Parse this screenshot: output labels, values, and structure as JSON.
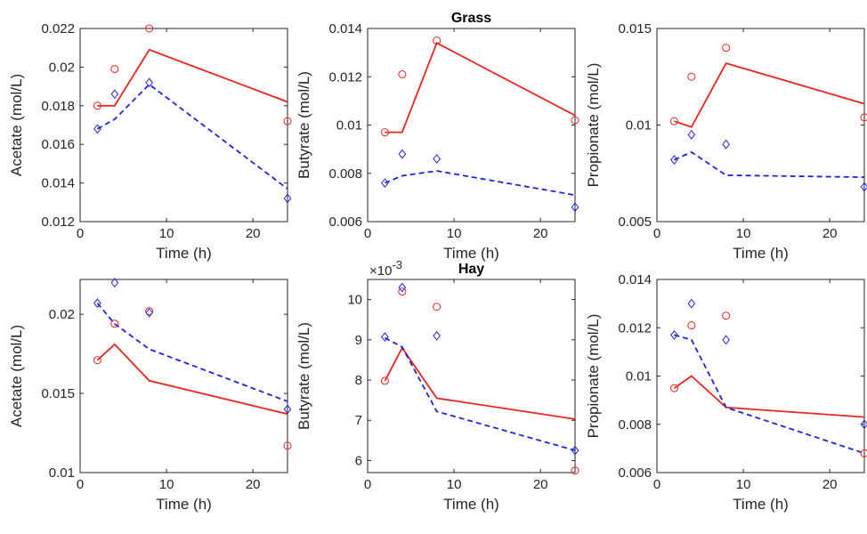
{
  "colors": {
    "red": "#e8261f",
    "blue": "#1f24d8",
    "axis": "#262626"
  },
  "chart_data": [
    {
      "type": "line",
      "title": "",
      "xlabel": "Time (h)",
      "ylabel": "Acetate (mol/L)",
      "xlim": [
        0,
        24
      ],
      "ylim": [
        0.012,
        0.022
      ],
      "xticks": [
        0,
        10,
        20
      ],
      "xtick_labels": [
        "0",
        "10",
        "20"
      ],
      "yticks": [
        0.012,
        0.014,
        0.016,
        0.018,
        0.02,
        0.022
      ],
      "ytick_labels": [
        "0.012",
        "0.014",
        "0.016",
        "0.018",
        "0.02",
        "0.022"
      ],
      "series": [
        {
          "style": "red-solid",
          "marker": "circle",
          "line": [
            [
              2,
              0.018
            ],
            [
              4,
              0.018
            ],
            [
              8,
              0.0209
            ],
            [
              24,
              0.0182
            ]
          ],
          "points": [
            [
              2,
              0.018
            ],
            [
              4,
              0.0199
            ],
            [
              8,
              0.022
            ],
            [
              24,
              0.0172
            ]
          ]
        },
        {
          "style": "blue-dashed",
          "marker": "diamond",
          "line": [
            [
              2,
              0.0168
            ],
            [
              4,
              0.0173
            ],
            [
              8,
              0.0191
            ],
            [
              24,
              0.0137
            ]
          ],
          "points": [
            [
              2,
              0.0168
            ],
            [
              4,
              0.0186
            ],
            [
              8,
              0.0192
            ],
            [
              24,
              0.0132
            ]
          ]
        }
      ]
    },
    {
      "type": "line",
      "title": "Grass",
      "xlabel": "Time (h)",
      "ylabel": "Butyrate (mol/L)",
      "xlim": [
        0,
        24
      ],
      "ylim": [
        0.006,
        0.014
      ],
      "xticks": [
        0,
        10,
        20
      ],
      "xtick_labels": [
        "0",
        "10",
        "20"
      ],
      "yticks": [
        0.006,
        0.008,
        0.01,
        0.012,
        0.014
      ],
      "ytick_labels": [
        "0.006",
        "0.008",
        "0.01",
        "0.012",
        "0.014"
      ],
      "series": [
        {
          "style": "red-solid",
          "marker": "circle",
          "line": [
            [
              2,
              0.0097
            ],
            [
              4,
              0.0097
            ],
            [
              8,
              0.0134
            ],
            [
              24,
              0.0104
            ]
          ],
          "points": [
            [
              2,
              0.0097
            ],
            [
              4,
              0.0121
            ],
            [
              8,
              0.0135
            ],
            [
              24,
              0.0102
            ]
          ]
        },
        {
          "style": "blue-dashed",
          "marker": "diamond",
          "line": [
            [
              2,
              0.0076
            ],
            [
              4,
              0.0079
            ],
            [
              8,
              0.0081
            ],
            [
              24,
              0.0071
            ]
          ],
          "points": [
            [
              2,
              0.0076
            ],
            [
              4,
              0.0088
            ],
            [
              8,
              0.0086
            ],
            [
              24,
              0.0066
            ]
          ]
        }
      ]
    },
    {
      "type": "line",
      "title": "",
      "xlabel": "Time (h)",
      "ylabel": "Propionate (mol/L)",
      "xlim": [
        0,
        24
      ],
      "ylim": [
        0.005,
        0.015
      ],
      "xticks": [
        0,
        10,
        20
      ],
      "xtick_labels": [
        "0",
        "10",
        "20"
      ],
      "yticks": [
        0.005,
        0.01,
        0.015
      ],
      "ytick_labels": [
        "0.005",
        "0.01",
        "0.015"
      ],
      "series": [
        {
          "style": "red-solid",
          "marker": "circle",
          "line": [
            [
              2,
              0.0102
            ],
            [
              4,
              0.0099
            ],
            [
              8,
              0.0132
            ],
            [
              24,
              0.0111
            ]
          ],
          "points": [
            [
              2,
              0.0102
            ],
            [
              4,
              0.0125
            ],
            [
              8,
              0.014
            ],
            [
              24,
              0.0104
            ]
          ]
        },
        {
          "style": "blue-dashed",
          "marker": "diamond",
          "line": [
            [
              2,
              0.0082
            ],
            [
              4,
              0.0086
            ],
            [
              8,
              0.0074
            ],
            [
              24,
              0.0073
            ]
          ],
          "points": [
            [
              2,
              0.0082
            ],
            [
              4,
              0.0095
            ],
            [
              8,
              0.009
            ],
            [
              24,
              0.0068
            ]
          ]
        }
      ]
    },
    {
      "type": "line",
      "title": "",
      "xlabel": "Time (h)",
      "ylabel": "Acetate (mol/L)",
      "xlim": [
        0,
        24
      ],
      "ylim": [
        0.01,
        0.0222
      ],
      "xticks": [
        0,
        10,
        20
      ],
      "xtick_labels": [
        "0",
        "10",
        "20"
      ],
      "yticks": [
        0.01,
        0.015,
        0.02
      ],
      "ytick_labels": [
        "0.01",
        "0.015",
        "0.02"
      ],
      "series": [
        {
          "style": "red-solid",
          "marker": "circle",
          "line": [
            [
              2,
              0.0171
            ],
            [
              4,
              0.0181
            ],
            [
              8,
              0.0158
            ],
            [
              24,
              0.0137
            ]
          ],
          "points": [
            [
              2,
              0.0171
            ],
            [
              4,
              0.0194
            ],
            [
              8,
              0.0202
            ],
            [
              24,
              0.0117
            ]
          ]
        },
        {
          "style": "blue-dashed",
          "marker": "diamond",
          "line": [
            [
              2,
              0.0207
            ],
            [
              4,
              0.0194
            ],
            [
              8,
              0.0178
            ],
            [
              24,
              0.0145
            ]
          ],
          "points": [
            [
              2,
              0.0207
            ],
            [
              4,
              0.022
            ],
            [
              8,
              0.0201
            ],
            [
              24,
              0.014
            ]
          ]
        }
      ]
    },
    {
      "type": "line",
      "title": "Hay",
      "xlabel": "Time (h)",
      "ylabel": "Butyrate (mol/L)",
      "scale_label": "×10",
      "scale_exponent": "-3",
      "xlim": [
        0,
        24
      ],
      "ylim": [
        5.7,
        10.5
      ],
      "xticks": [
        0,
        10,
        20
      ],
      "xtick_labels": [
        "0",
        "10",
        "20"
      ],
      "yticks": [
        6,
        7,
        8,
        9,
        10
      ],
      "ytick_labels": [
        "6",
        "7",
        "8",
        "9",
        "10"
      ],
      "series": [
        {
          "style": "red-solid",
          "marker": "circle",
          "line": [
            [
              2,
              7.98
            ],
            [
              4,
              8.8
            ],
            [
              8,
              7.55
            ],
            [
              24,
              7.03
            ]
          ],
          "points": [
            [
              2,
              7.98
            ],
            [
              4,
              10.2
            ],
            [
              8,
              9.82
            ],
            [
              24,
              5.75
            ]
          ]
        },
        {
          "style": "blue-dashed",
          "marker": "diamond",
          "line": [
            [
              2,
              9.05
            ],
            [
              4,
              8.82
            ],
            [
              8,
              7.22
            ],
            [
              24,
              6.25
            ]
          ],
          "points": [
            [
              2,
              9.07
            ],
            [
              4,
              10.3
            ],
            [
              8,
              9.1
            ],
            [
              24,
              6.25
            ]
          ]
        }
      ]
    },
    {
      "type": "line",
      "title": "",
      "xlabel": "Time (h)",
      "ylabel": "Propionate (mol/L)",
      "xlim": [
        0,
        24
      ],
      "ylim": [
        0.006,
        0.014
      ],
      "xticks": [
        0,
        10,
        20
      ],
      "xtick_labels": [
        "0",
        "10",
        "20"
      ],
      "yticks": [
        0.006,
        0.008,
        0.01,
        0.012,
        0.014
      ],
      "ytick_labels": [
        "0.006",
        "0.008",
        "0.01",
        "0.012",
        "0.014"
      ],
      "series": [
        {
          "style": "red-solid",
          "marker": "circle",
          "line": [
            [
              2,
              0.0095
            ],
            [
              4,
              0.01
            ],
            [
              8,
              0.0087
            ],
            [
              24,
              0.0083
            ]
          ],
          "points": [
            [
              2,
              0.0095
            ],
            [
              4,
              0.0121
            ],
            [
              8,
              0.0125
            ],
            [
              24,
              0.0068
            ]
          ]
        },
        {
          "style": "blue-dashed",
          "marker": "diamond",
          "line": [
            [
              2,
              0.0117
            ],
            [
              4,
              0.0115
            ],
            [
              8,
              0.0087
            ],
            [
              24,
              0.0068
            ]
          ],
          "points": [
            [
              2,
              0.0117
            ],
            [
              4,
              0.013
            ],
            [
              8,
              0.0115
            ],
            [
              24,
              0.008
            ]
          ]
        }
      ]
    }
  ]
}
